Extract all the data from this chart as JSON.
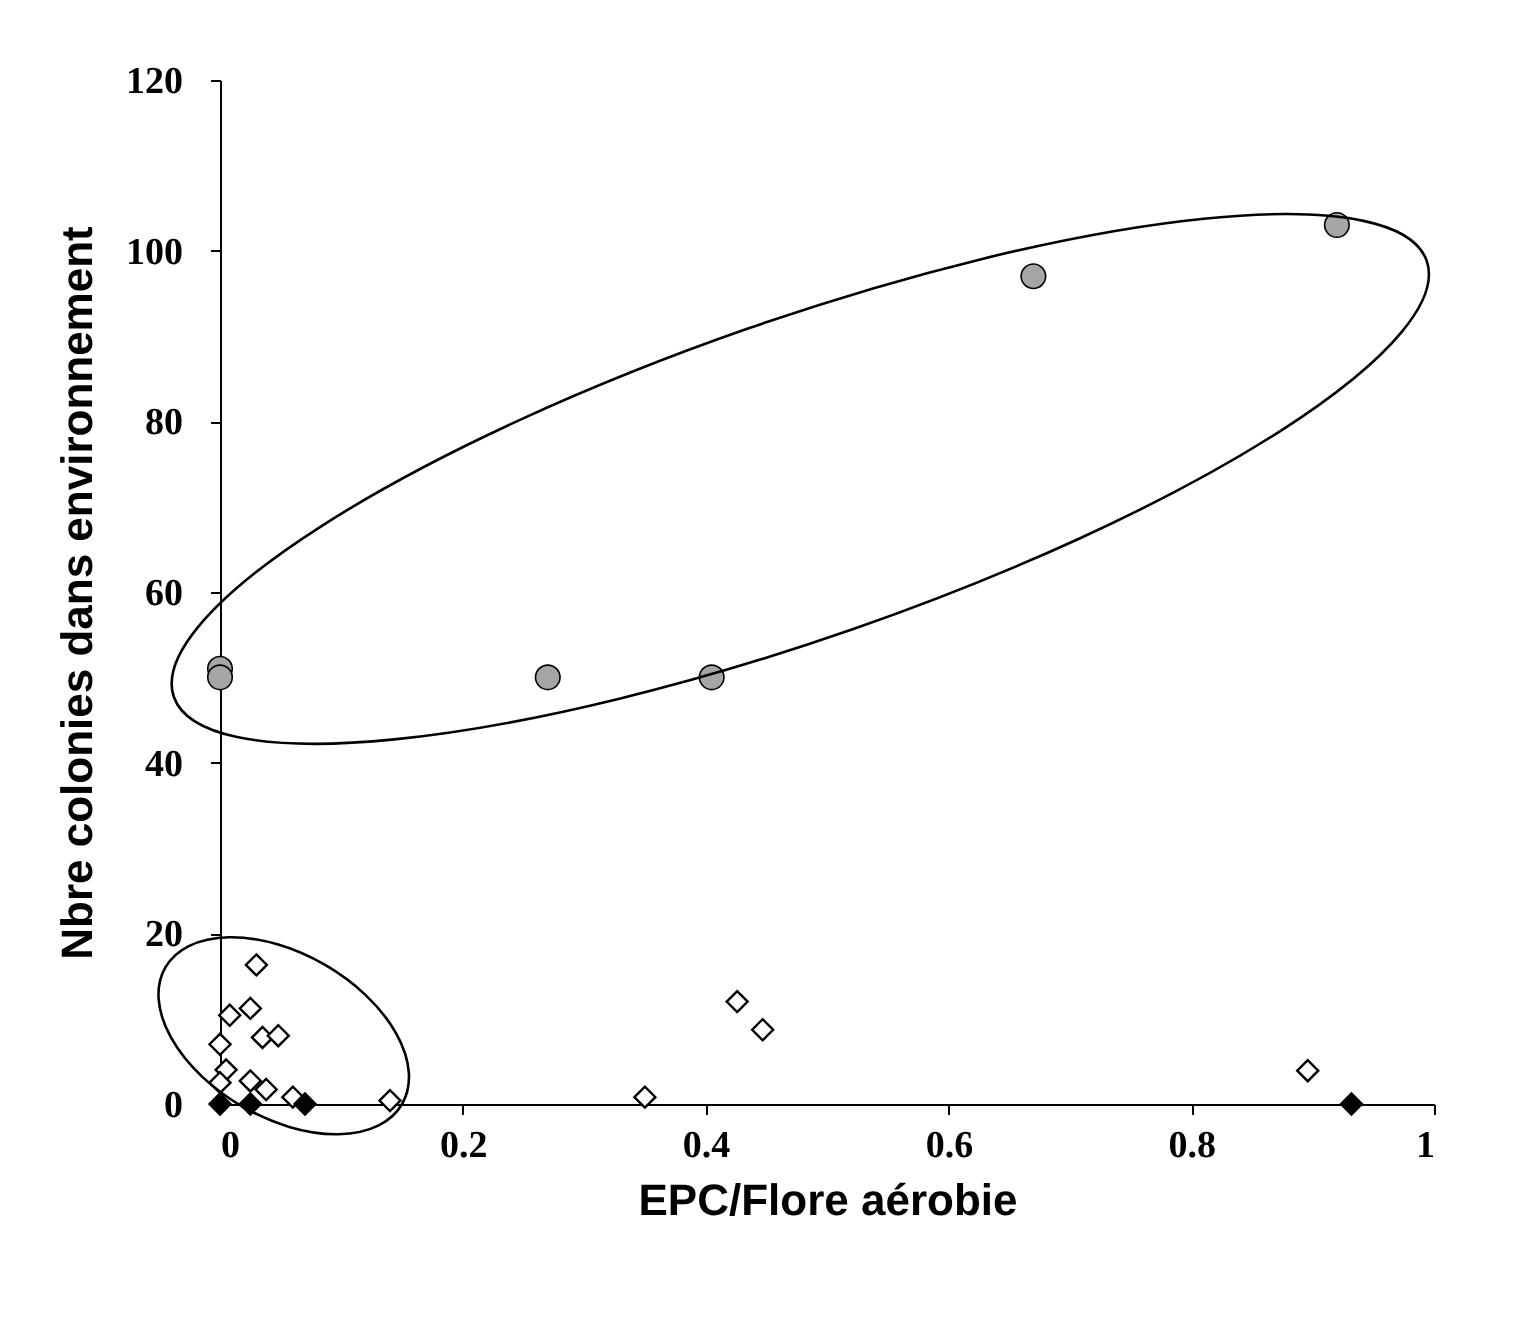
{
  "chart_data": {
    "type": "scatter",
    "xlabel": "EPC/Flore aérobie",
    "ylabel": "Nbre colonies dans environnement",
    "xlim": [
      0,
      1
    ],
    "ylim": [
      0,
      120
    ],
    "xticks": [
      0,
      0.2,
      0.4,
      0.6,
      0.8,
      1
    ],
    "yticks": [
      0,
      20,
      40,
      60,
      80,
      100,
      120
    ],
    "grid": false,
    "legend": false,
    "series": [
      {
        "color": "#a6a6a6",
        "marker": "circle",
        "x": [
          0,
          0,
          0.27,
          0.405,
          0.67,
          0.92
        ],
        "values": [
          51,
          50,
          50,
          50,
          97,
          103
        ]
      },
      {
        "color": "#ffffff",
        "marker": "diamond",
        "x": [
          0.03,
          0.025,
          0.008,
          0.035,
          0.048,
          0,
          0.005,
          0.025,
          0,
          0.038,
          0.06,
          0.14,
          0.35,
          0.426,
          0.447,
          0.896
        ],
        "values": [
          16.3,
          11.2,
          10.4,
          7.8,
          8,
          7,
          4,
          2.7,
          2.5,
          1.7,
          0.8,
          0.4,
          0.8,
          12,
          8.7,
          3.9
        ]
      },
      {
        "color": "#000000",
        "marker": "diamond",
        "x": [
          0,
          0.025,
          0.07,
          0.932
        ],
        "values": [
          0,
          0,
          0,
          0
        ]
      }
    ]
  }
}
